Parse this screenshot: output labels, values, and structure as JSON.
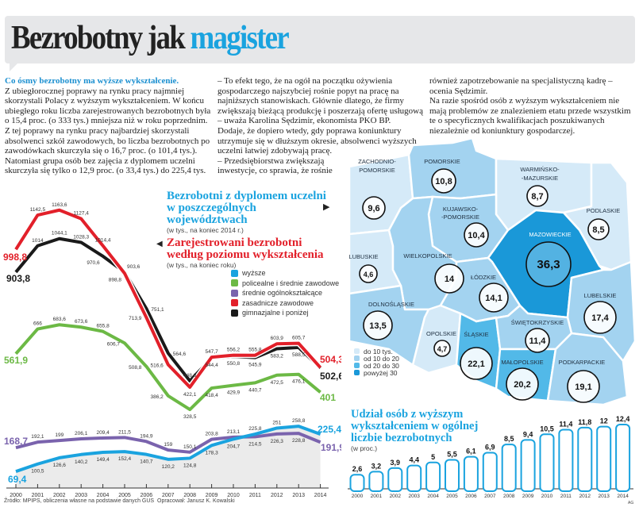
{
  "header": {
    "title_part1": "Bezrobotny jak",
    "title_part2": "magister"
  },
  "article": {
    "lead": "Co ósmy bezrobotny ma wyższe wykształcenie.",
    "col1": "Z ubiegłorocznej poprawy na rynku pracy najmniej skorzystali Polacy z wyższym wykształceniem. W końcu ubiegłego roku liczba zarejestrowanych bezrobotnych była o 15,4 proc. (o 333 tys.) mniejsza niż w roku poprzednim. Z tej poprawy na rynku pracy najbardziej skorzystali absolwenci szkół zawodowych, bo liczba bezrobotnych po zawodówkach skurczyła się o 16,7 proc. (o 101,4 tys.).",
    "col1b": "Natomiast grupa osób bez zajęcia z dyplomem uczelni skurczyła się tylko o 12,9 proc. (o 33,4 tys.) do 225,4 tys.",
    "col2": "– To efekt tego, że na ogół na początku ożywienia gospodarczego najszybciej rośnie popyt na pracę na najniższych stanowiskach. Głównie dlatego, że firmy zwiększają bieżącą produkcję i poszerzają ofertę usługową – uważa Karolina Sędzimir, ekonomista PKO BP.",
    "col2b": "Dodaje, że dopiero wtedy, gdy poprawa koniunktury utrzymuje się w dłuższym okresie, absolwenci wyższych uczelni łatwiej zdobywają pracę.",
    "col2c": "– Przedsiębiorstwa zwiększają inwestycje, co sprawia, że rośnie",
    "col3": "również zapotrzebowanie na specjalistyczną kadrę – ocenia Sędzimir.",
    "col3b": "Na razie spośród osób z wyższym wykształceniem nie mają problemów ze znalezieniem etatu przede wszystkim te o specyficznych kwalifikacjach poszukiwanych niezależnie od koniunktury gospodarczej."
  },
  "footer": {
    "source": "Źródło: MPIPS, obliczenia własne na podstawie danych GUS",
    "author": "Opracował: Janusz K. Kowalski",
    "initials": "AG"
  },
  "colors": {
    "blue": "#1aa3df",
    "green": "#6cb945",
    "purple": "#7a63ad",
    "red": "#e2202a",
    "black": "#1a1a1a",
    "map_lt10": "#d5eaf8",
    "map_10_20": "#a3d3f0",
    "map_20_30": "#52b9e8",
    "map_gt30": "#1a98d8"
  },
  "chart_data": [
    {
      "type": "line",
      "title": "Zarejestrowani bezrobotni według poziomu wykształcenia",
      "subtitle": "(w tys., na koniec roku)",
      "x": [
        "2000",
        "2001",
        "2002",
        "2003",
        "2004",
        "2005",
        "2006",
        "2007",
        "2008",
        "2009",
        "2010",
        "2011",
        "2012",
        "2013",
        "2014"
      ],
      "ylim": [
        0,
        1200
      ],
      "legend_position": "right",
      "series": [
        {
          "name": "wyższe",
          "color": "#1aa3df",
          "values": [
            69.4,
            100.5,
            126.6,
            140.2,
            149.4,
            152.4,
            140.7,
            120.2,
            124.8,
            178.3,
            204.7,
            225.8,
            251,
            258.8,
            225.4
          ]
        },
        {
          "name": "policealne i średnie zawodowe",
          "color": "#6cb945",
          "values": [
            561.9,
            666,
            683.6,
            673.6,
            655.8,
            606.7,
            508.8,
            386.2,
            328.5,
            418.4,
            429.9,
            440.7,
            472.5,
            476.1,
            401
          ]
        },
        {
          "name": "średnie ogólnokształcące",
          "color": "#7a63ad",
          "values": [
            168.7,
            192.1,
            199,
            206.1,
            209.4,
            211.5,
            194.9,
            159,
            150.1,
            203.8,
            213.1,
            214.5,
            226.3,
            228.8,
            191.9
          ]
        },
        {
          "name": "zasadnicze zawodowe",
          "color": "#e2202a",
          "values": [
            998.8,
            1142.5,
            1163.6,
            1127.4,
            1014.4,
            898.8,
            713.9,
            516.6,
            422.1,
            547.7,
            556.2,
            555.8,
            603.9,
            605.7,
            504.3
          ]
        },
        {
          "name": "gimnazjalne i poniżej",
          "color": "#1a1a1a",
          "values": [
            903.8,
            1014,
            1044.1,
            1028.3,
            970.6,
            903.6,
            751.1,
            564.6,
            448.3,
            544.4,
            550.8,
            545.9,
            583.2,
            588.5,
            502.6
          ]
        }
      ]
    },
    {
      "type": "map",
      "title": "Bezrobotni z dyplomem uczelni w poszczególnych województwach",
      "subtitle": "(w tys., na koniec 2014 r.)",
      "legend": [
        "do 10 tys.",
        "od 10 do 20",
        "od 20 do 30",
        "powyżej 30"
      ],
      "regions": [
        {
          "name": "ZACHODNIO-POMORSKIE",
          "value": 9.6
        },
        {
          "name": "POMORSKIE",
          "value": 10.8
        },
        {
          "name": "WARMIŃSKO--MAZURSKIE",
          "value": 8.7
        },
        {
          "name": "PODLASKIE",
          "value": 8.5
        },
        {
          "name": "KUJAWSKO--POMORSKIE",
          "value": 10.4
        },
        {
          "name": "MAZOWIECKIE",
          "value": 36.3
        },
        {
          "name": "LUBUSKIE",
          "value": 4.6
        },
        {
          "name": "WIELKOPOLSKIE",
          "value": 14
        },
        {
          "name": "ŁÓDZKIE",
          "value": 14.1
        },
        {
          "name": "LUBELSKIE",
          "value": 17.4
        },
        {
          "name": "DOLNOŚLĄSKIE",
          "value": 13.5
        },
        {
          "name": "OPOLSKIE",
          "value": 4.7
        },
        {
          "name": "ŚLĄSKIE",
          "value": 22.1
        },
        {
          "name": "ŚWIĘTOKRZYSKIE",
          "value": 11.4
        },
        {
          "name": "MAŁOPOLSKIE",
          "value": 20.2
        },
        {
          "name": "PODKARPACKIE",
          "value": 19.1
        }
      ]
    },
    {
      "type": "bar",
      "title": "Udział osób z wyższym wykształceniem w ogólnej liczbie bezrobotnych",
      "subtitle": "(w proc.)",
      "categories": [
        "2000",
        "2001",
        "2002",
        "2003",
        "2004",
        "2005",
        "2006",
        "2007",
        "2008",
        "2009",
        "2010",
        "2011",
        "2012",
        "2013",
        "2014"
      ],
      "values": [
        2.6,
        3.2,
        3.9,
        4.4,
        5,
        5.5,
        6.1,
        6.9,
        8.5,
        9.4,
        10.5,
        11.4,
        11.8,
        12,
        12.4
      ],
      "ylim": [
        0,
        12.4
      ]
    }
  ]
}
